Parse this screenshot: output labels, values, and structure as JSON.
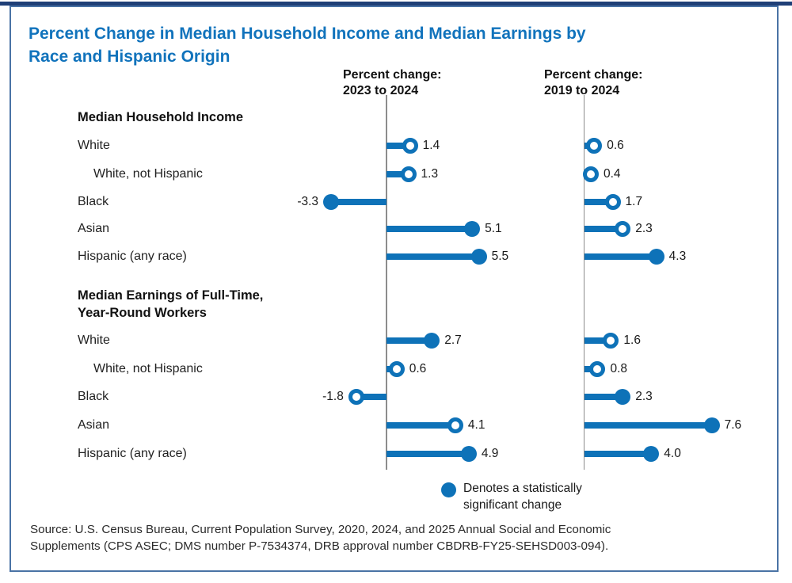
{
  "accent_blue": "#0E72B8",
  "title": {
    "line1": "Percent Change in Median Household Income and Median Earnings by",
    "line2": "Race and Hispanic Origin"
  },
  "legend": {
    "line1": "Denotes a statistically",
    "line2": "significant change"
  },
  "source": {
    "line1": "Source: U.S. Census Bureau, Current Population Survey, 2020, 2024, and 2025 Annual Social and Economic",
    "line2": "Supplements (CPS ASEC; DMS number P-7534374, DRB approval number CBDRB-FY25-SEHSD003-094)."
  },
  "chart_data": {
    "type": "bar",
    "variant": "lollipop",
    "units": "percent change",
    "value_range": [
      -3.3,
      7.6
    ],
    "grid": false,
    "legend_note": "Filled dot denotes a statistically significant change; open dot denotes not significant",
    "columns": [
      {
        "header_line1": "Percent change:",
        "header_line2": "2023 to 2024"
      },
      {
        "header_line1": "Percent change:",
        "header_line2": "2019 to 2024"
      }
    ],
    "sections": [
      {
        "label_lines": [
          "Median Household Income"
        ],
        "rows": [
          {
            "label": "White",
            "indent": false,
            "values": [
              {
                "value": 1.4,
                "significant": false
              },
              {
                "value": 0.6,
                "significant": false
              }
            ]
          },
          {
            "label": "White, not Hispanic",
            "indent": true,
            "values": [
              {
                "value": 1.3,
                "significant": false
              },
              {
                "value": 0.4,
                "significant": false
              }
            ]
          },
          {
            "label": "Black",
            "indent": false,
            "values": [
              {
                "value": -3.3,
                "significant": true
              },
              {
                "value": 1.7,
                "significant": false
              }
            ]
          },
          {
            "label": "Asian",
            "indent": false,
            "values": [
              {
                "value": 5.1,
                "significant": true
              },
              {
                "value": 2.3,
                "significant": false
              }
            ]
          },
          {
            "label": "Hispanic (any race)",
            "indent": false,
            "values": [
              {
                "value": 5.5,
                "significant": true
              },
              {
                "value": 4.3,
                "significant": true
              }
            ]
          }
        ]
      },
      {
        "label_lines": [
          "Median Earnings of Full-Time,",
          "Year-Round Workers"
        ],
        "rows": [
          {
            "label": "White",
            "indent": false,
            "values": [
              {
                "value": 2.7,
                "significant": true
              },
              {
                "value": 1.6,
                "significant": false
              }
            ]
          },
          {
            "label": "White, not Hispanic",
            "indent": true,
            "values": [
              {
                "value": 0.6,
                "significant": false
              },
              {
                "value": 0.8,
                "significant": false
              }
            ]
          },
          {
            "label": "Black",
            "indent": false,
            "values": [
              {
                "value": -1.8,
                "significant": false
              },
              {
                "value": 2.3,
                "significant": true
              }
            ]
          },
          {
            "label": "Asian",
            "indent": false,
            "values": [
              {
                "value": 4.1,
                "significant": false
              },
              {
                "value": 7.6,
                "significant": true
              }
            ]
          },
          {
            "label": "Hispanic (any race)",
            "indent": false,
            "values": [
              {
                "value": 4.9,
                "significant": true
              },
              {
                "value": 4.0,
                "significant": true
              }
            ]
          }
        ]
      }
    ]
  }
}
